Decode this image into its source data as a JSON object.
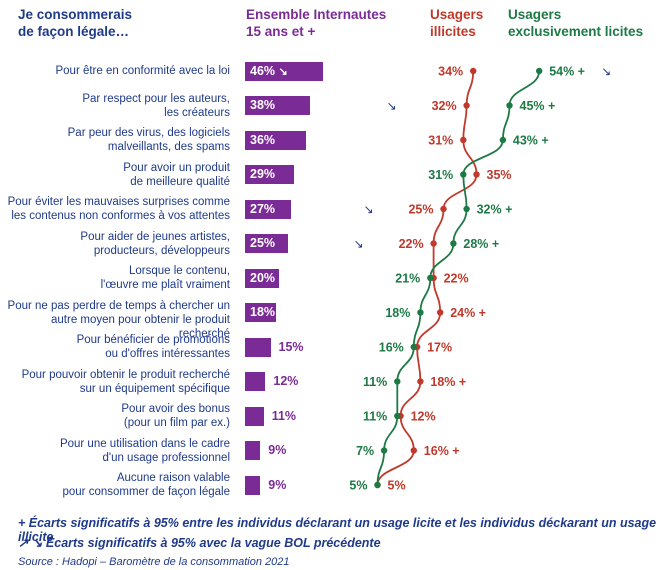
{
  "headers": {
    "question": "Je consommerais\nde façon légale…",
    "all": "Ensemble Internautes\n15 ans et +",
    "illicit": "Usagers\nillicites",
    "licit": "Usagers\nexclusivement licites"
  },
  "colors": {
    "all": "#7b2b96",
    "illicit": "#c0392b",
    "licit": "#1e7a45",
    "text": "#1f3a8a"
  },
  "chart_data": {
    "type": "bar",
    "categories": [
      "Pour être en conformité avec la loi",
      "Par respect pour les auteurs,\nles créateurs",
      "Par peur des virus, des logiciels\nmalveillants, des spams",
      "Pour avoir un produit\nde meilleure qualité",
      "Pour éviter les mauvaises surprises comme\nles contenus non conformes à vos attentes",
      "Pour aider de jeunes artistes,\nproducteurs, développeurs",
      "Lorsque le contenu,\nl'œuvre me plaît vraiment",
      "Pour ne pas perdre de temps à chercher un\nautre moyen pour obtenir le produit recherché",
      "Pour bénéficier de promotions\nou d'offres intéressantes",
      "Pour pouvoir obtenir le produit recherché\nsur un équipement spécifique",
      "Pour avoir des bonus\n(pour un film par ex.)",
      "Pour une utilisation dans le cadre\nd'un usage professionnel",
      "Aucune raison valable\npour consommer de façon légale"
    ],
    "series": [
      {
        "name": "Ensemble Internautes 15 ans et +",
        "values": [
          46,
          38,
          36,
          29,
          27,
          25,
          20,
          18,
          15,
          12,
          11,
          9,
          9
        ],
        "labels": [
          "46%",
          "38%",
          "36%",
          "29%",
          "27%",
          "25%",
          "20%",
          "18%",
          "15%",
          "12%",
          "11%",
          "9%",
          "9%"
        ],
        "trend": [
          "down",
          "",
          "",
          "",
          "",
          "",
          "",
          "",
          "",
          "",
          "",
          "",
          ""
        ]
      },
      {
        "name": "Usagers illicites",
        "values": [
          34,
          32,
          31,
          35,
          25,
          22,
          22,
          24,
          17,
          18,
          12,
          16,
          5
        ],
        "labels": [
          "34%",
          "32%",
          "31%",
          "35%",
          "25%",
          "22%",
          "22%",
          "24% +",
          "17%",
          "18% +",
          "12%",
          "16% +",
          "5%"
        ],
        "trend": [
          "",
          "down",
          "",
          "",
          "down",
          "down",
          "",
          "",
          "",
          "",
          "",
          "",
          ""
        ]
      },
      {
        "name": "Usagers exclusivement licites",
        "values": [
          54,
          45,
          43,
          31,
          32,
          28,
          21,
          18,
          16,
          11,
          11,
          7,
          5
        ],
        "labels": [
          "54% +",
          "45% +",
          "43% +",
          "31%",
          "32% +",
          "28% +",
          "21%",
          "18%",
          "16%",
          "11%",
          "11%",
          "7%",
          "5%"
        ],
        "trend": [
          "down",
          "",
          "",
          "",
          "",
          "",
          "",
          "",
          "",
          "",
          "",
          "",
          ""
        ]
      }
    ]
  },
  "footnotes": {
    "sig_licit_vs_illicit": "+ Écarts significatifs à 95% entre les individus déclarant un usage licite et les individus déckarant un usage illicite",
    "sig_wave": "Écarts significatifs à 95% avec la vague BOL précédente",
    "arrows": "↗ ↘",
    "source": "Source : Hadopi – Baromètre de la consommation 2021"
  }
}
